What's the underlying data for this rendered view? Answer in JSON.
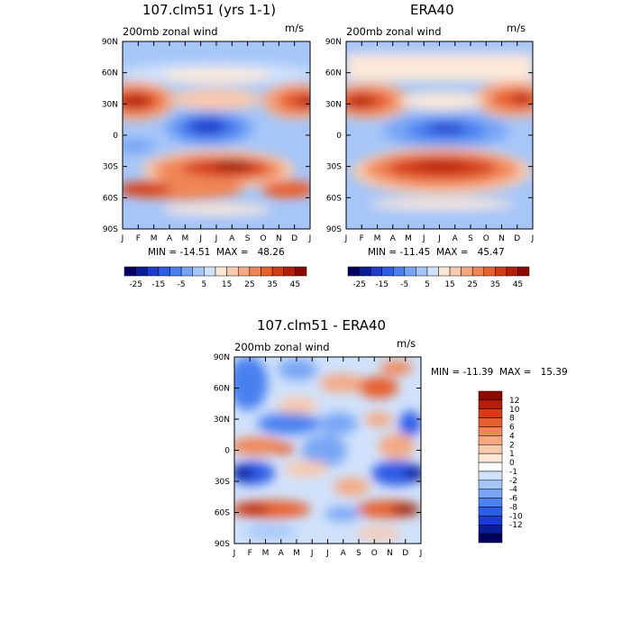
{
  "palettes": {
    "full": [
      "#00005e",
      "#0a1e9a",
      "#1e3ccc",
      "#2d5ce6",
      "#4a80f0",
      "#78a6f4",
      "#a6c6f8",
      "#d0e2fb",
      "#fde8d8",
      "#f9c9ae",
      "#f5a882",
      "#f08555",
      "#e8602e",
      "#d43c17",
      "#b41e09",
      "#8c0800"
    ],
    "diff": [
      "#00005e",
      "#0a1e9a",
      "#1e3ccc",
      "#2d5ce6",
      "#4a80f0",
      "#78a6f4",
      "#a6c6f8",
      "#d0e2fb",
      "#ffffff",
      "#fde8d8",
      "#f9c9ae",
      "#f5a882",
      "#f08555",
      "#e8602e",
      "#d43c17",
      "#b41e09",
      "#8c0800"
    ]
  },
  "chart_data": [
    {
      "type": "heatmap",
      "title": "107.clm51 (yrs 1-1)",
      "subtitle_left": "200mb zonal wind",
      "subtitle_right": "m/s",
      "minmax_text": "MIN = -14.51  MAX =   48.26",
      "min": -14.51,
      "max": 48.26,
      "x_ticks": [
        "J",
        "F",
        "M",
        "A",
        "M",
        "J",
        "J",
        "A",
        "S",
        "O",
        "N",
        "D",
        "J"
      ],
      "y_ticks": [
        "90N",
        "60N",
        "30N",
        "0",
        "30S",
        "60S",
        "90S"
      ],
      "colorbar_labels": [
        "-25",
        "-15",
        "-5",
        "5",
        "15",
        "25",
        "35",
        "45"
      ]
    },
    {
      "type": "heatmap",
      "title": "ERA40",
      "subtitle_left": "200mb zonal wind",
      "subtitle_right": "m/s",
      "minmax_text": "MIN = -11.45  MAX =   45.47",
      "min": -11.45,
      "max": 45.47,
      "x_ticks": [
        "J",
        "F",
        "M",
        "A",
        "M",
        "J",
        "J",
        "A",
        "S",
        "O",
        "N",
        "D",
        "J"
      ],
      "y_ticks": [
        "90N",
        "60N",
        "30N",
        "0",
        "30S",
        "60S",
        "90S"
      ],
      "colorbar_labels": [
        "-25",
        "-15",
        "-5",
        "5",
        "15",
        "25",
        "35",
        "45"
      ]
    },
    {
      "type": "heatmap",
      "title": "107.clm51 - ERA40",
      "subtitle_left": "200mb zonal wind",
      "subtitle_right": "m/s",
      "minmax_text": "MIN = -11.39  MAX =   15.39",
      "min": -11.39,
      "max": 15.39,
      "x_ticks": [
        "J",
        "F",
        "M",
        "A",
        "M",
        "J",
        "J",
        "A",
        "S",
        "O",
        "N",
        "D",
        "J"
      ],
      "y_ticks": [
        "90N",
        "60N",
        "30N",
        "0",
        "30S",
        "60S",
        "90S"
      ],
      "colorbar_labels": [
        "12",
        "10",
        "8",
        "6",
        "4",
        "2",
        "1",
        "0",
        "-1",
        "-2",
        "-4",
        "-6",
        "-8",
        "-10",
        "-12"
      ]
    }
  ]
}
